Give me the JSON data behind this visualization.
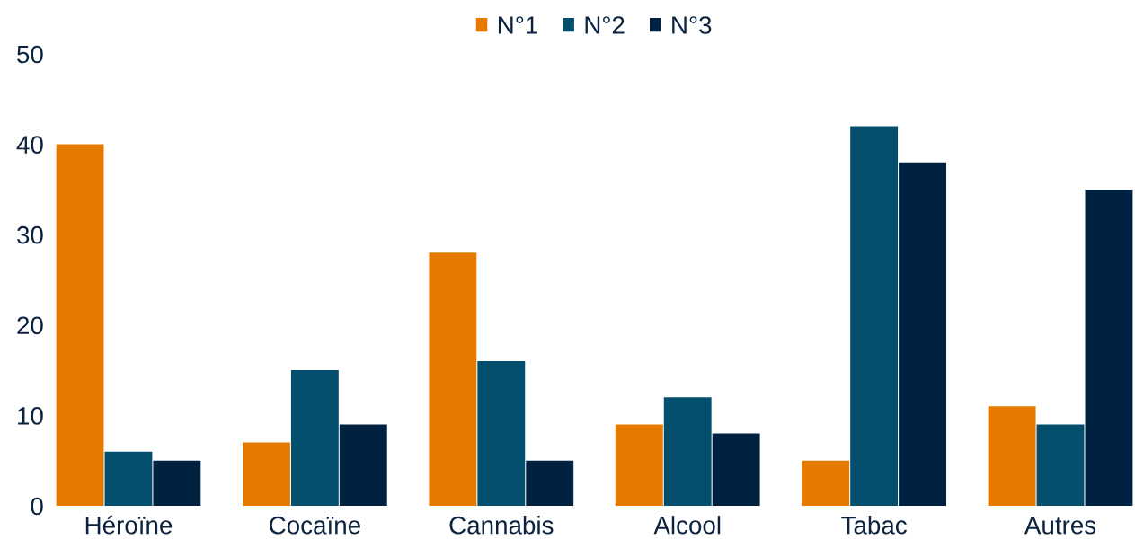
{
  "chart_data": {
    "type": "bar",
    "categories": [
      "Héroïne",
      "Cocaïne",
      "Cannabis",
      "Alcool",
      "Tabac",
      "Autres"
    ],
    "series": [
      {
        "name": "N°1",
        "color": "#e67a00",
        "values": [
          40,
          7,
          28,
          9,
          5,
          11
        ]
      },
      {
        "name": "N°2",
        "color": "#054f6e",
        "values": [
          6,
          15,
          16,
          12,
          42,
          9
        ]
      },
      {
        "name": "N°3",
        "color": "#00213f",
        "values": [
          5,
          9,
          5,
          8,
          38,
          35
        ]
      }
    ],
    "ylim": [
      0,
      50
    ],
    "yticks": [
      0,
      10,
      20,
      30,
      40,
      50
    ],
    "grid": false,
    "legend": "top"
  }
}
